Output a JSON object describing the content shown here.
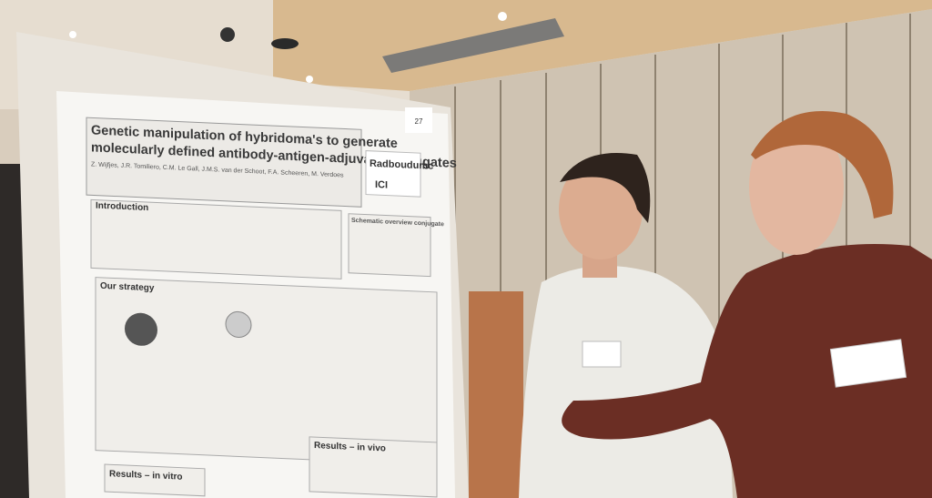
{
  "poster": {
    "number": "27",
    "title_lines": [
      "Genetic manipulation of hybridoma's to generate",
      "molecularly defined antibody-antigen-adjuvant conjugates"
    ],
    "authors": "Z. Wijfjes, J.R. Tomiliero, C.M. Le Gall, J.M.S. van der Schoot, F.A. Scheeren, M. Verdoes",
    "logo": "Radboudumc",
    "logo2": "ICI",
    "sections": {
      "introduction": "Introduction",
      "schematic": "Schematic overview conjugate",
      "strategy": "Our strategy",
      "in_vitro": "Results – in vitro",
      "in_vivo": "Results – in vivo"
    }
  }
}
